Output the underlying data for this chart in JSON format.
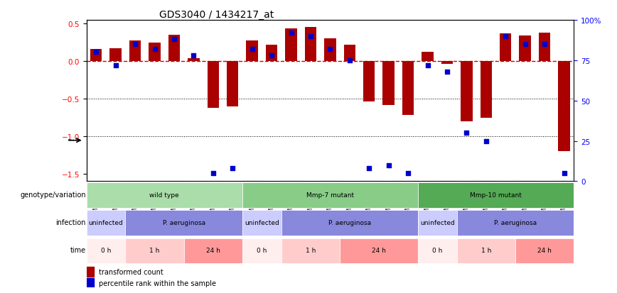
{
  "title": "GDS3040 / 1434217_at",
  "samples": [
    "GSM196062",
    "GSM196063",
    "GSM196064",
    "GSM196065",
    "GSM196066",
    "GSM196067",
    "GSM196068",
    "GSM196069",
    "GSM196070",
    "GSM196071",
    "GSM196072",
    "GSM196073",
    "GSM196074",
    "GSM196075",
    "GSM196076",
    "GSM196077",
    "GSM196078",
    "GSM196079",
    "GSM196080",
    "GSM196081",
    "GSM196082",
    "GSM196083",
    "GSM196084",
    "GSM196085",
    "GSM196086"
  ],
  "bar_values": [
    0.16,
    0.17,
    0.28,
    0.25,
    0.35,
    0.04,
    -0.62,
    -0.6,
    0.28,
    0.22,
    0.44,
    0.46,
    0.3,
    0.22,
    -0.54,
    -0.58,
    -0.72,
    0.12,
    -0.04,
    -0.8,
    -0.75,
    0.37,
    0.34,
    0.38,
    -1.2
  ],
  "dot_values": [
    80,
    72,
    85,
    82,
    88,
    78,
    5,
    8,
    82,
    78,
    92,
    90,
    82,
    75,
    8,
    10,
    5,
    72,
    68,
    30,
    25,
    90,
    85,
    85,
    5
  ],
  "bar_color": "#AA0000",
  "dot_color": "#0000CC",
  "zero_line_color": "#CC0000",
  "genotype_groups": [
    {
      "label": "wild type",
      "start": 0,
      "end": 8,
      "color": "#AADDAA"
    },
    {
      "label": "Mmp-7 mutant",
      "start": 8,
      "end": 17,
      "color": "#88CC88"
    },
    {
      "label": "Mmp-10 mutant",
      "start": 17,
      "end": 25,
      "color": "#55AA55"
    }
  ],
  "infection_groups": [
    {
      "label": "uninfected",
      "start": 0,
      "end": 2,
      "color": "#CCCCFF"
    },
    {
      "label": "P. aeruginosa",
      "start": 2,
      "end": 8,
      "color": "#8888DD"
    },
    {
      "label": "uninfected",
      "start": 8,
      "end": 10,
      "color": "#CCCCFF"
    },
    {
      "label": "P. aeruginosa",
      "start": 10,
      "end": 17,
      "color": "#8888DD"
    },
    {
      "label": "uninfected",
      "start": 17,
      "end": 19,
      "color": "#CCCCFF"
    },
    {
      "label": "P. aeruginosa",
      "start": 19,
      "end": 25,
      "color": "#8888DD"
    }
  ],
  "time_groups": [
    {
      "label": "0 h",
      "start": 0,
      "end": 2,
      "color": "#FFEEEE"
    },
    {
      "label": "1 h",
      "start": 2,
      "end": 5,
      "color": "#FFCCCC"
    },
    {
      "label": "24 h",
      "start": 5,
      "end": 8,
      "color": "#FF9999"
    },
    {
      "label": "0 h",
      "start": 8,
      "end": 10,
      "color": "#FFEEEE"
    },
    {
      "label": "1 h",
      "start": 10,
      "end": 13,
      "color": "#FFCCCC"
    },
    {
      "label": "24 h",
      "start": 13,
      "end": 17,
      "color": "#FF9999"
    },
    {
      "label": "0 h",
      "start": 17,
      "end": 19,
      "color": "#FFEEEE"
    },
    {
      "label": "1 h",
      "start": 19,
      "end": 22,
      "color": "#FFCCCC"
    },
    {
      "label": "24 h",
      "start": 22,
      "end": 25,
      "color": "#FF9999"
    }
  ],
  "ylim": [
    -1.6,
    0.55
  ],
  "yticks": [
    0.5,
    0.0,
    -0.5,
    -1.0,
    -1.5
  ],
  "right_yticks": [
    100,
    75,
    50,
    25,
    0
  ],
  "right_ylim": [
    0,
    100
  ],
  "xlabel": "",
  "ylabel": "",
  "annotation_labels": [
    "genotype/variation",
    "infection",
    "time"
  ]
}
